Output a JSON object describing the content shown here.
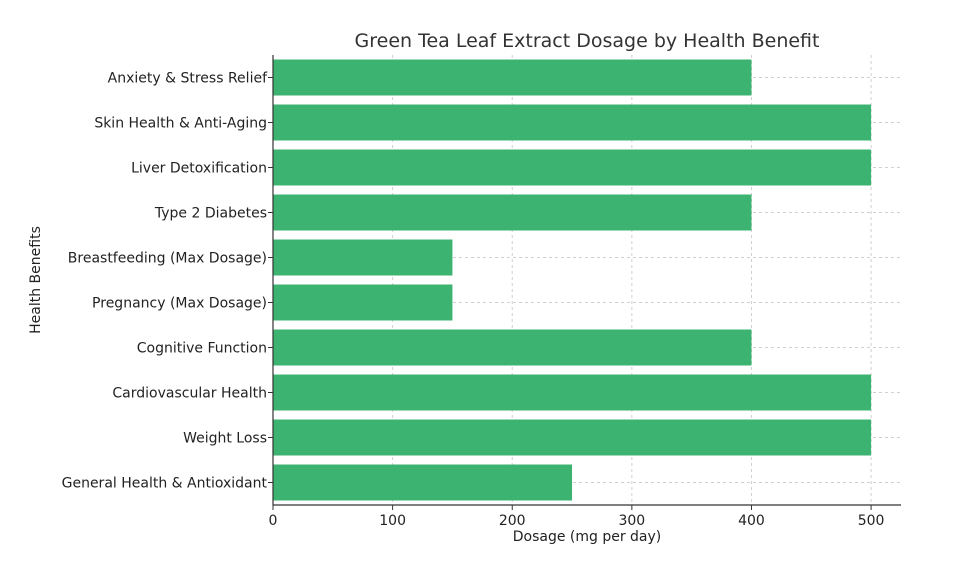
{
  "chart_data": {
    "type": "bar",
    "orientation": "horizontal",
    "title": "Green Tea Leaf Extract Dosage by Health Benefit",
    "xlabel": "Dosage (mg per day)",
    "ylabel": "Health Benefits",
    "categories": [
      "General Health & Antioxidant",
      "Weight Loss",
      "Cardiovascular Health",
      "Cognitive Function",
      "Pregnancy (Max Dosage)",
      "Breastfeeding (Max Dosage)",
      "Type 2 Diabetes",
      "Liver Detoxification",
      "Skin Health & Anti-Aging",
      "Anxiety & Stress Relief"
    ],
    "values": [
      250,
      500,
      500,
      400,
      150,
      150,
      400,
      500,
      500,
      400
    ],
    "xlim": [
      0,
      525
    ],
    "xticks": [
      0,
      100,
      200,
      300,
      400,
      500
    ],
    "grid": true,
    "bar_color": "#3cb371"
  }
}
